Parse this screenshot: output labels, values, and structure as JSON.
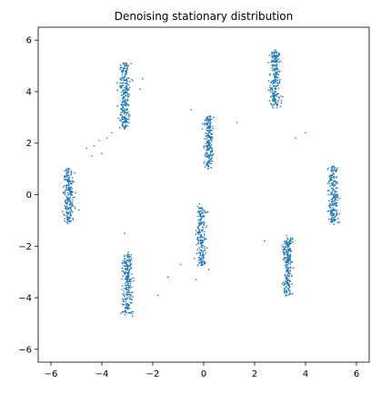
{
  "chart_data": {
    "type": "scatter",
    "title": "Denoising stationary distribution",
    "xlabel": "",
    "ylabel": "",
    "xlim": [
      -6.5,
      6.5
    ],
    "ylim": [
      -6.5,
      6.5
    ],
    "xticks": [
      -6,
      -4,
      -2,
      0,
      2,
      4,
      6
    ],
    "yticks": [
      -6,
      -4,
      -2,
      0,
      2,
      4,
      6
    ],
    "xtick_labels": [
      "−6",
      "−4",
      "−2",
      "0",
      "2",
      "4",
      "6"
    ],
    "ytick_labels": [
      "−6",
      "−4",
      "−2",
      "0",
      "2",
      "4",
      "6"
    ],
    "grid": false,
    "point_color": "#1f77b4",
    "clusters": [
      {
        "center": [
          -5.3,
          0.0
        ],
        "x_spread": 0.22,
        "y_range": [
          -1.1,
          1.0
        ],
        "points": 220
      },
      {
        "center": [
          -3.1,
          3.8
        ],
        "x_spread": 0.22,
        "y_range": [
          2.6,
          5.1
        ],
        "points": 260
      },
      {
        "center": [
          2.8,
          4.5
        ],
        "x_spread": 0.22,
        "y_range": [
          3.4,
          5.6
        ],
        "points": 230
      },
      {
        "center": [
          0.2,
          2.0
        ],
        "x_spread": 0.2,
        "y_range": [
          1.0,
          3.1
        ],
        "points": 200
      },
      {
        "center": [
          5.1,
          0.0
        ],
        "x_spread": 0.22,
        "y_range": [
          -1.1,
          1.1
        ],
        "points": 210
      },
      {
        "center": [
          -0.1,
          -1.5
        ],
        "x_spread": 0.2,
        "y_range": [
          -2.7,
          -0.4
        ],
        "points": 200
      },
      {
        "center": [
          -3.0,
          -3.4
        ],
        "x_spread": 0.22,
        "y_range": [
          -4.6,
          -2.3
        ],
        "points": 230
      },
      {
        "center": [
          3.3,
          -2.8
        ],
        "x_spread": 0.22,
        "y_range": [
          -3.9,
          -1.7
        ],
        "points": 230
      }
    ],
    "outliers": [
      [
        -4.6,
        1.8
      ],
      [
        -4.3,
        1.9
      ],
      [
        -4.1,
        2.1
      ],
      [
        -4.0,
        1.6
      ],
      [
        -4.4,
        1.5
      ],
      [
        -3.6,
        2.4
      ],
      [
        -3.3,
        2.6
      ],
      [
        -3.8,
        2.2
      ],
      [
        -2.5,
        4.1
      ],
      [
        -2.4,
        4.5
      ],
      [
        -1.8,
        -3.9
      ],
      [
        -1.4,
        -3.2
      ],
      [
        -0.9,
        -2.7
      ],
      [
        -0.3,
        -3.3
      ],
      [
        0.4,
        3.0
      ],
      [
        1.3,
        2.8
      ],
      [
        2.4,
        -1.8
      ],
      [
        3.6,
        2.2
      ],
      [
        4.0,
        2.4
      ],
      [
        -3.1,
        -1.5
      ],
      [
        -0.5,
        3.3
      ],
      [
        -2.8,
        -4.7
      ],
      [
        0.2,
        -2.9
      ],
      [
        -4.9,
        -0.6
      ]
    ]
  }
}
